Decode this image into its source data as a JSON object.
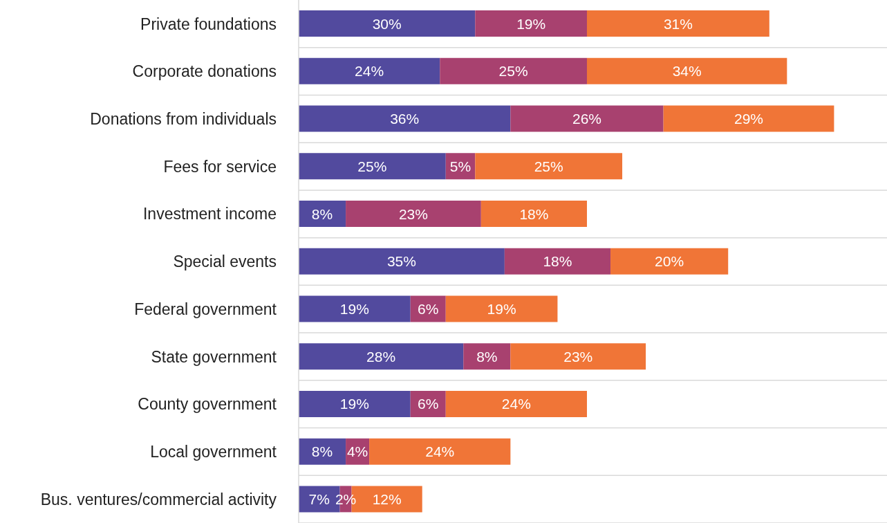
{
  "chart_data": {
    "type": "bar",
    "orientation": "horizontal",
    "stacked": true,
    "categories": [
      "Private foundations",
      "Corporate donations",
      "Donations from individuals",
      "Fees for service",
      "Investment income",
      "Special events",
      "Federal government",
      "State government",
      "County government",
      "Local government",
      "Bus. ventures/commercial activity"
    ],
    "series": [
      {
        "color": "#524a9e",
        "values": [
          30,
          24,
          36,
          25,
          8,
          35,
          19,
          28,
          19,
          8,
          7
        ],
        "value_labels": [
          "30%",
          "24%",
          "36%",
          "25%",
          "8%",
          "35%",
          "19%",
          "28%",
          "19%",
          "8%",
          "7%"
        ]
      },
      {
        "color": "#a8416f",
        "values": [
          19,
          25,
          26,
          5,
          23,
          18,
          6,
          8,
          6,
          4,
          2
        ],
        "value_labels": [
          "19%",
          "25%",
          "26%",
          "5%",
          "23%",
          "18%",
          "6%",
          "8%",
          "6%",
          "4%",
          "2%"
        ]
      },
      {
        "color": "#f07537",
        "values": [
          31,
          34,
          29,
          25,
          18,
          20,
          19,
          23,
          24,
          24,
          12
        ],
        "value_labels": [
          "31%",
          "34%",
          "29%",
          "25%",
          "18%",
          "20%",
          "19%",
          "23%",
          "24%",
          "24%",
          "12%"
        ]
      }
    ],
    "xlim": [
      0,
      100
    ],
    "tick_labels": "y",
    "grid": "y"
  }
}
